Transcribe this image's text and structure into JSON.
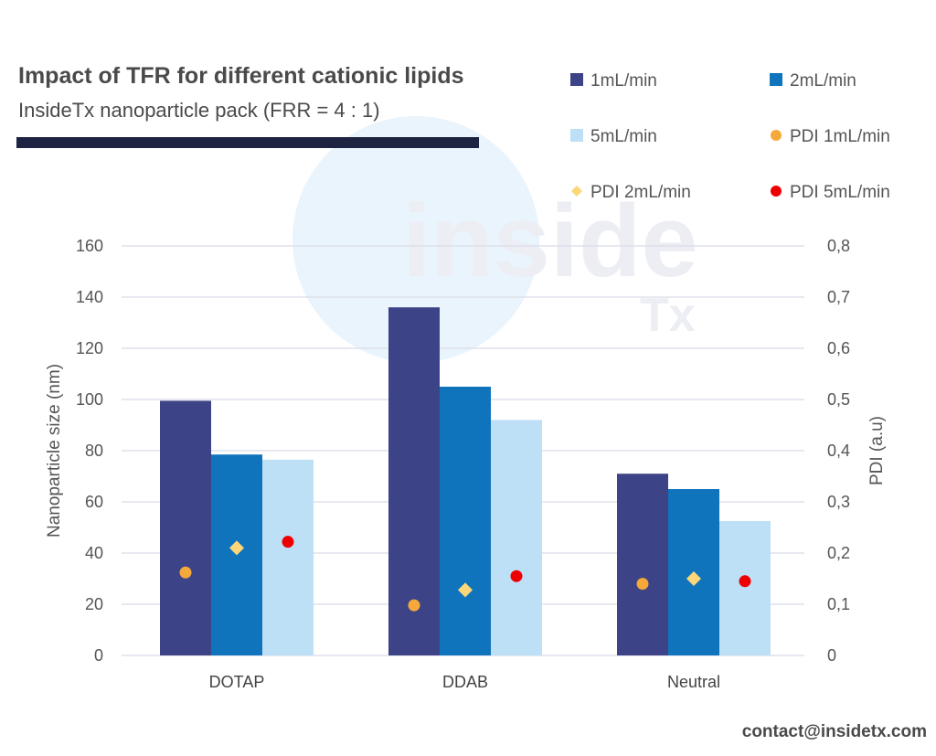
{
  "title": "Impact of TFR for different cationic lipids",
  "subtitle": "InsideTx nanoparticle pack (FRR = 4 : 1)",
  "contact": "contact@insidetx.com",
  "watermark": {
    "main": "inside",
    "sub": "Tx"
  },
  "colors": {
    "bar_1": "#3d4387",
    "bar_2": "#1074bc",
    "bar_3": "#bde0f6",
    "pdi_1": "#f5a93b",
    "pdi_2": "#fcd77a",
    "pdi_5": "#ee0000",
    "title_rule": "#1d2340",
    "grid": "#d9dce6"
  },
  "chart_data": {
    "type": "bar",
    "categories": [
      "DOTAP",
      "DDAB",
      "Neutral"
    ],
    "series": [
      {
        "name": "1mL/min",
        "axis": "left",
        "kind": "bar",
        "values": [
          99.5,
          136,
          71
        ]
      },
      {
        "name": "2mL/min",
        "axis": "left",
        "kind": "bar",
        "values": [
          78.5,
          105,
          65
        ]
      },
      {
        "name": "5mL/min",
        "axis": "left",
        "kind": "bar",
        "values": [
          76.5,
          92,
          52.5
        ]
      },
      {
        "name": "PDI 1mL/min",
        "axis": "right",
        "kind": "scatter",
        "marker": "circle",
        "values": [
          0.162,
          0.098,
          0.14
        ]
      },
      {
        "name": "PDI 2mL/min",
        "axis": "right",
        "kind": "scatter",
        "marker": "diamond",
        "values": [
          0.21,
          0.128,
          0.15
        ]
      },
      {
        "name": "PDI 5mL/min",
        "axis": "right",
        "kind": "scatter",
        "marker": "circle",
        "values": [
          0.222,
          0.155,
          0.145
        ]
      }
    ],
    "ylabel": "Nanoparticle size (nm)",
    "y2label": "PDI (a.u)",
    "ylim": [
      0,
      160
    ],
    "y2lim": [
      0,
      0.8
    ],
    "yticks": [
      "0",
      "20",
      "40",
      "60",
      "80",
      "100",
      "120",
      "140",
      "160"
    ],
    "y2ticks": [
      "0",
      "0,1",
      "0,2",
      "0,3",
      "0,4",
      "0,5",
      "0,6",
      "0,7",
      "0,8"
    ],
    "grid": true,
    "legend_position": "top-right"
  }
}
